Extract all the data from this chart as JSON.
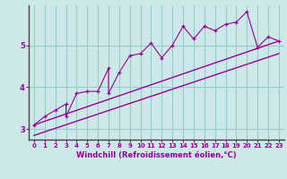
{
  "title": "",
  "xlabel": "Windchill (Refroidissement éolien,°C)",
  "bg_color": "#cce8e8",
  "line_color": "#990099",
  "grid_color": "#99cccc",
  "axis_color": "#666666",
  "x_data": [
    0,
    1,
    2,
    3,
    3,
    4,
    5,
    6,
    7,
    7,
    8,
    9,
    10,
    11,
    12,
    13,
    14,
    15,
    16,
    17,
    18,
    19,
    20,
    21,
    22,
    23
  ],
  "y_data": [
    3.1,
    3.3,
    3.45,
    3.6,
    3.3,
    3.85,
    3.9,
    3.9,
    4.45,
    3.85,
    4.35,
    4.75,
    4.8,
    5.05,
    4.7,
    5.0,
    5.45,
    5.15,
    5.45,
    5.35,
    5.5,
    5.55,
    5.8,
    4.95,
    5.2,
    5.1
  ],
  "trend1_x": [
    0,
    23
  ],
  "trend1_y": [
    3.1,
    5.1
  ],
  "trend2_x": [
    0,
    23
  ],
  "trend2_y": [
    2.85,
    4.8
  ],
  "xlim": [
    -0.5,
    23.5
  ],
  "ylim": [
    2.75,
    5.95
  ],
  "yticks": [
    3,
    4,
    5
  ],
  "xticks": [
    0,
    1,
    2,
    3,
    4,
    5,
    6,
    7,
    8,
    9,
    10,
    11,
    12,
    13,
    14,
    15,
    16,
    17,
    18,
    19,
    20,
    21,
    22,
    23
  ]
}
